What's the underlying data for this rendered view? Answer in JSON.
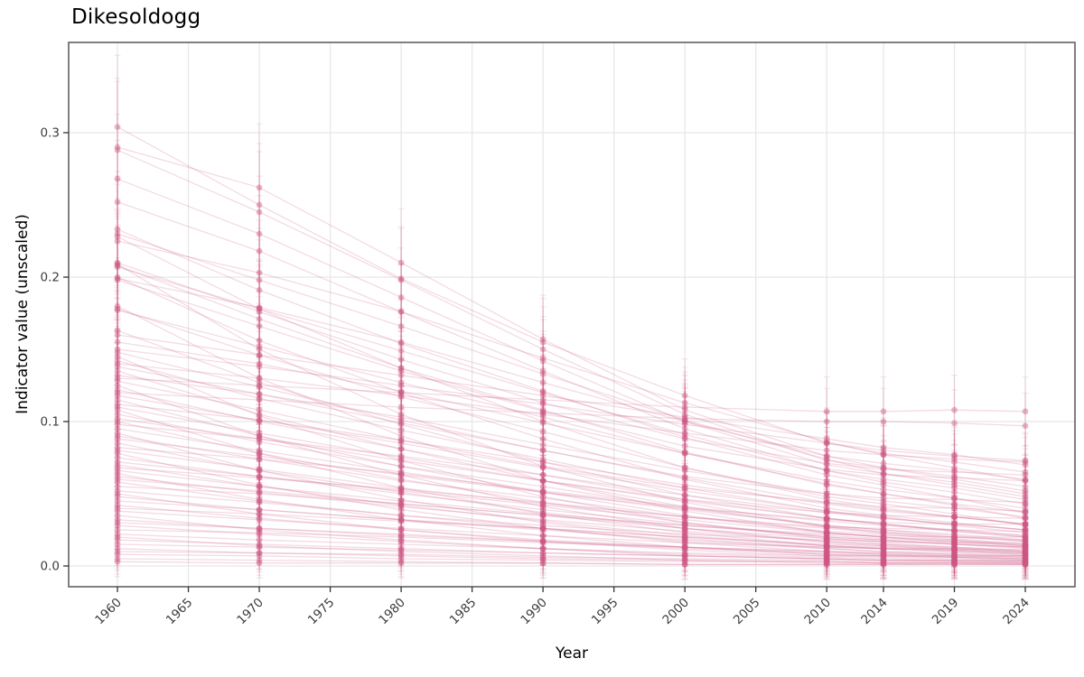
{
  "chart": {
    "title": "Dikesoldogg",
    "xlabel": "Year",
    "ylabel": "Indicator value (unscaled)",
    "colors": {
      "series_pink": "#cd5582",
      "gridline": "#e6e6e6",
      "panel_border": "#565656",
      "tick_mark": "#333333",
      "tick_label": "#3d3d3d",
      "text": "#000000",
      "background": "#ffffff"
    }
  },
  "chart_data": {
    "type": "line",
    "title": "Dikesoldogg",
    "xlabel": "Year",
    "ylabel": "Indicator value (unscaled)",
    "legend": false,
    "grid": true,
    "marker": "circle",
    "error_bars": true,
    "x_ticks": [
      1960,
      1965,
      1970,
      1975,
      1980,
      1985,
      1990,
      1995,
      2000,
      2005,
      2010,
      2014,
      2019,
      2024
    ],
    "y_ticks": [
      0.0,
      0.1,
      0.2,
      0.3
    ],
    "y_tick_labels": [
      "0.0",
      "0.1",
      "0.2",
      "0.3"
    ],
    "xlim": [
      1956.56,
      2027.5
    ],
    "ylim": [
      -0.014375,
      0.3625
    ],
    "x": [
      1960,
      1970,
      1980,
      1990,
      2000,
      2010,
      2014,
      2019,
      2024
    ],
    "series": [
      [
        0.304,
        0.25,
        0.199,
        0.155,
        0.118,
        0.085,
        0.078,
        0.072,
        0.065
      ],
      [
        0.29,
        0.262,
        0.21,
        0.157,
        0.108,
        0.076,
        0.071,
        0.066,
        0.06
      ],
      [
        0.288,
        0.245,
        0.198,
        0.15,
        0.105,
        0.073,
        0.068,
        0.062,
        0.055
      ],
      [
        0.268,
        0.23,
        0.186,
        0.142,
        0.1,
        0.07,
        0.064,
        0.058,
        0.05
      ],
      [
        0.252,
        0.218,
        0.176,
        0.135,
        0.095,
        0.066,
        0.06,
        0.054,
        0.046
      ],
      [
        0.233,
        0.191,
        0.154,
        0.121,
        0.089,
        0.063,
        0.056,
        0.047,
        0.037
      ],
      [
        0.23,
        0.198,
        0.166,
        0.133,
        0.101,
        0.074,
        0.064,
        0.056,
        0.048
      ],
      [
        0.228,
        0.178,
        0.137,
        0.1,
        0.068,
        0.046,
        0.04,
        0.034,
        0.029
      ],
      [
        0.225,
        0.203,
        0.176,
        0.144,
        0.113,
        0.086,
        0.077,
        0.068,
        0.059
      ],
      [
        0.21,
        0.176,
        0.143,
        0.113,
        0.088,
        0.071,
        0.067,
        0.065,
        0.063
      ],
      [
        0.209,
        0.15,
        0.105,
        0.069,
        0.044,
        0.027,
        0.023,
        0.019,
        0.015
      ],
      [
        0.208,
        0.171,
        0.137,
        0.108,
        0.079,
        0.056,
        0.05,
        0.042,
        0.033
      ],
      [
        0.207,
        0.178,
        0.149,
        0.12,
        0.091,
        0.066,
        0.058,
        0.051,
        0.043
      ],
      [
        0.2,
        0.156,
        0.12,
        0.088,
        0.06,
        0.04,
        0.035,
        0.03,
        0.025
      ],
      [
        0.199,
        0.179,
        0.155,
        0.127,
        0.1,
        0.076,
        0.068,
        0.06,
        0.052
      ],
      [
        0.198,
        0.166,
        0.135,
        0.107,
        0.083,
        0.067,
        0.063,
        0.061,
        0.059
      ],
      [
        0.18,
        0.13,
        0.09,
        0.059,
        0.038,
        0.023,
        0.02,
        0.016,
        0.013
      ],
      [
        0.178,
        0.146,
        0.117,
        0.093,
        0.068,
        0.048,
        0.043,
        0.036,
        0.028
      ],
      [
        0.177,
        0.152,
        0.127,
        0.103,
        0.078,
        0.057,
        0.05,
        0.043,
        0.037
      ],
      [
        0.163,
        0.127,
        0.098,
        0.072,
        0.049,
        0.033,
        0.029,
        0.024,
        0.02
      ],
      [
        0.16,
        0.146,
        0.132,
        0.118,
        0.103,
        0.088,
        0.082,
        0.077,
        0.07
      ],
      [
        0.155,
        0.14,
        0.121,
        0.099,
        0.078,
        0.059,
        0.053,
        0.047,
        0.04
      ],
      [
        0.15,
        0.138,
        0.125,
        0.112,
        0.098,
        0.085,
        0.08,
        0.076,
        0.073
      ],
      [
        0.148,
        0.124,
        0.101,
        0.08,
        0.062,
        0.05,
        0.047,
        0.046,
        0.044
      ],
      [
        0.145,
        0.104,
        0.073,
        0.048,
        0.03,
        0.019,
        0.016,
        0.013,
        0.01
      ],
      [
        0.142,
        0.116,
        0.094,
        0.074,
        0.054,
        0.038,
        0.034,
        0.028,
        0.023
      ],
      [
        0.14,
        0.13,
        0.118,
        0.105,
        0.092,
        0.08,
        0.077,
        0.074,
        0.072
      ],
      [
        0.138,
        0.119,
        0.099,
        0.08,
        0.061,
        0.044,
        0.039,
        0.034,
        0.029
      ],
      [
        0.135,
        0.105,
        0.081,
        0.059,
        0.041,
        0.027,
        0.024,
        0.02,
        0.017
      ],
      [
        0.132,
        0.119,
        0.103,
        0.084,
        0.066,
        0.05,
        0.045,
        0.04,
        0.034
      ],
      [
        0.13,
        0.125,
        0.12,
        0.115,
        0.11,
        0.107,
        0.107,
        0.108,
        0.107
      ],
      [
        0.128,
        0.108,
        0.087,
        0.069,
        0.054,
        0.044,
        0.041,
        0.04,
        0.038
      ],
      [
        0.125,
        0.09,
        0.063,
        0.041,
        0.026,
        0.016,
        0.014,
        0.011,
        0.009
      ],
      [
        0.122,
        0.1,
        0.081,
        0.063,
        0.046,
        0.033,
        0.029,
        0.024,
        0.02
      ],
      [
        0.12,
        0.115,
        0.11,
        0.106,
        0.102,
        0.1,
        0.1,
        0.099,
        0.097
      ],
      [
        0.118,
        0.101,
        0.085,
        0.068,
        0.052,
        0.038,
        0.033,
        0.029,
        0.025
      ],
      [
        0.115,
        0.09,
        0.069,
        0.051,
        0.035,
        0.023,
        0.02,
        0.017,
        0.014
      ],
      [
        0.112,
        0.101,
        0.087,
        0.072,
        0.056,
        0.043,
        0.038,
        0.034,
        0.029
      ],
      [
        0.11,
        0.092,
        0.075,
        0.059,
        0.046,
        0.037,
        0.035,
        0.034,
        0.033
      ],
      [
        0.108,
        0.078,
        0.054,
        0.036,
        0.023,
        0.014,
        0.012,
        0.01,
        0.008
      ],
      [
        0.105,
        0.086,
        0.069,
        0.055,
        0.04,
        0.028,
        0.025,
        0.021,
        0.017
      ],
      [
        0.102,
        0.088,
        0.073,
        0.059,
        0.045,
        0.033,
        0.029,
        0.025,
        0.021
      ],
      [
        0.1,
        0.078,
        0.06,
        0.044,
        0.03,
        0.02,
        0.018,
        0.015,
        0.013
      ],
      [
        0.098,
        0.088,
        0.076,
        0.063,
        0.049,
        0.037,
        0.033,
        0.029,
        0.025
      ],
      [
        0.095,
        0.08,
        0.065,
        0.051,
        0.04,
        0.032,
        0.03,
        0.029,
        0.029
      ],
      [
        0.092,
        0.066,
        0.046,
        0.03,
        0.019,
        0.012,
        0.01,
        0.008,
        0.006
      ],
      [
        0.09,
        0.074,
        0.059,
        0.047,
        0.034,
        0.024,
        0.022,
        0.018,
        0.014
      ],
      [
        0.088,
        0.076,
        0.063,
        0.051,
        0.039,
        0.028,
        0.025,
        0.022,
        0.018
      ],
      [
        0.085,
        0.066,
        0.051,
        0.037,
        0.026,
        0.017,
        0.015,
        0.013,
        0.011
      ],
      [
        0.082,
        0.074,
        0.064,
        0.052,
        0.041,
        0.031,
        0.028,
        0.025,
        0.021
      ],
      [
        0.08,
        0.067,
        0.054,
        0.043,
        0.034,
        0.027,
        0.026,
        0.025,
        0.024
      ],
      [
        0.078,
        0.056,
        0.039,
        0.026,
        0.016,
        0.01,
        0.009,
        0.007,
        0.005
      ],
      [
        0.075,
        0.062,
        0.05,
        0.039,
        0.029,
        0.02,
        0.018,
        0.015,
        0.012
      ],
      [
        0.072,
        0.062,
        0.052,
        0.042,
        0.032,
        0.023,
        0.02,
        0.018,
        0.015
      ],
      [
        0.07,
        0.055,
        0.042,
        0.031,
        0.021,
        0.014,
        0.012,
        0.011,
        0.009
      ],
      [
        0.068,
        0.061,
        0.053,
        0.044,
        0.034,
        0.026,
        0.023,
        0.02,
        0.018
      ],
      [
        0.066,
        0.055,
        0.045,
        0.036,
        0.028,
        0.022,
        0.021,
        0.02,
        0.02
      ],
      [
        0.064,
        0.046,
        0.032,
        0.021,
        0.013,
        0.008,
        0.007,
        0.006,
        0.004
      ],
      [
        0.062,
        0.051,
        0.041,
        0.032,
        0.024,
        0.017,
        0.015,
        0.012,
        0.01
      ],
      [
        0.06,
        0.052,
        0.043,
        0.035,
        0.026,
        0.019,
        0.017,
        0.015,
        0.013
      ],
      [
        0.058,
        0.045,
        0.035,
        0.026,
        0.017,
        0.012,
        0.01,
        0.009,
        0.007
      ],
      [
        0.055,
        0.05,
        0.043,
        0.035,
        0.028,
        0.021,
        0.019,
        0.017,
        0.014
      ],
      [
        0.052,
        0.044,
        0.035,
        0.028,
        0.022,
        0.018,
        0.017,
        0.016,
        0.016
      ],
      [
        0.05,
        0.036,
        0.025,
        0.017,
        0.011,
        0.007,
        0.006,
        0.005,
        0.004
      ],
      [
        0.048,
        0.039,
        0.032,
        0.025,
        0.018,
        0.013,
        0.012,
        0.01,
        0.008
      ],
      [
        0.045,
        0.039,
        0.032,
        0.026,
        0.02,
        0.014,
        0.013,
        0.011,
        0.009
      ],
      [
        0.042,
        0.033,
        0.025,
        0.018,
        0.013,
        0.008,
        0.007,
        0.006,
        0.005
      ],
      [
        0.04,
        0.036,
        0.031,
        0.026,
        0.02,
        0.015,
        0.014,
        0.012,
        0.01
      ],
      [
        0.038,
        0.032,
        0.026,
        0.021,
        0.016,
        0.013,
        0.012,
        0.012,
        0.011
      ],
      [
        0.035,
        0.025,
        0.018,
        0.012,
        0.007,
        0.005,
        0.004,
        0.003,
        0.002
      ],
      [
        0.032,
        0.026,
        0.021,
        0.017,
        0.012,
        0.009,
        0.008,
        0.006,
        0.005
      ],
      [
        0.03,
        0.026,
        0.022,
        0.017,
        0.013,
        0.01,
        0.008,
        0.007,
        0.006
      ],
      [
        0.028,
        0.022,
        0.017,
        0.012,
        0.008,
        0.006,
        0.005,
        0.004,
        0.004
      ],
      [
        0.025,
        0.023,
        0.02,
        0.016,
        0.013,
        0.01,
        0.009,
        0.008,
        0.007
      ],
      [
        0.022,
        0.018,
        0.015,
        0.012,
        0.009,
        0.007,
        0.007,
        0.007,
        0.007
      ],
      [
        0.02,
        0.014,
        0.01,
        0.007,
        0.004,
        0.003,
        0.002,
        0.002,
        0.001
      ],
      [
        0.018,
        0.015,
        0.012,
        0.009,
        0.007,
        0.005,
        0.004,
        0.004,
        0.003
      ],
      [
        0.015,
        0.013,
        0.011,
        0.009,
        0.007,
        0.005,
        0.004,
        0.004,
        0.003
      ],
      [
        0.012,
        0.009,
        0.007,
        0.005,
        0.004,
        0.002,
        0.002,
        0.002,
        0.002
      ],
      [
        0.01,
        0.009,
        0.008,
        0.006,
        0.005,
        0.004,
        0.003,
        0.003,
        0.003
      ],
      [
        0.008,
        0.007,
        0.005,
        0.004,
        0.003,
        0.003,
        0.002,
        0.002,
        0.002
      ],
      [
        0.005,
        0.004,
        0.003,
        0.002,
        0.001,
        0.001,
        0.001,
        0.001,
        0.001
      ],
      [
        0.003,
        0.002,
        0.002,
        0.002,
        0.001,
        0.001,
        0.001,
        0.001,
        0.001
      ]
    ]
  }
}
